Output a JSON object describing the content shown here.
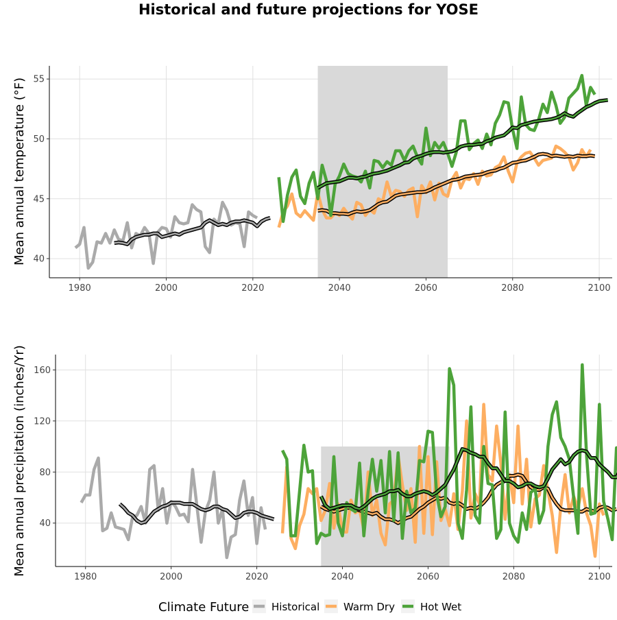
{
  "title": "Historical and future projections for YOSE",
  "legend": {
    "title": "Climate Future",
    "items": [
      {
        "label": "Historical",
        "color": "#AAAAAA"
      },
      {
        "label": "Warm Dry",
        "color": "#FDAE61"
      },
      {
        "label": "Hot Wet",
        "color": "#4DA33A"
      }
    ]
  },
  "colors": {
    "shade": "#D9D9D9",
    "grid": "#E0E0E0",
    "smooth": "#000000"
  },
  "chart_data": [
    {
      "type": "line",
      "ylabel": "Mean annual temperature (°F)",
      "xlabel": "",
      "xlim": [
        1973,
        2103
      ],
      "ylim": [
        38.4,
        56.1
      ],
      "xticks": [
        1980,
        2000,
        2020,
        2040,
        2060,
        2080,
        2100
      ],
      "yticks": [
        40,
        45,
        50,
        55
      ],
      "grid": true,
      "shaded_range": [
        2035,
        2065
      ],
      "series": [
        {
          "name": "Historical",
          "x_start": 1979,
          "values": [
            40.9,
            41.2,
            42.6,
            39.2,
            39.7,
            41.4,
            41.3,
            42.1,
            41.3,
            42.4,
            41.6,
            41.5,
            43.0,
            40.9,
            42.1,
            41.9,
            42.6,
            42.1,
            39.6,
            42.2,
            42.6,
            42.5,
            41.8,
            43.5,
            43.0,
            42.9,
            43.0,
            44.5,
            44.1,
            43.9,
            41.0,
            40.5,
            43.3,
            42.9,
            44.7,
            44.0,
            42.8,
            43.0,
            42.9,
            41.0,
            43.9,
            43.6,
            43.4
          ]
        },
        {
          "name": "Historical smoothed",
          "smooth": true,
          "x_start": 1988,
          "values": [
            41.3,
            41.35,
            41.3,
            41.2,
            41.6,
            41.8,
            41.9,
            42.0,
            42.0,
            42.1,
            42.1,
            41.8,
            41.9,
            42.0,
            42.1,
            42.0,
            42.2,
            42.3,
            42.4,
            42.5,
            42.6,
            43.0,
            43.2,
            43.0,
            42.8,
            42.9,
            42.8,
            43.0,
            43.1,
            43.1,
            43.2,
            43.1,
            43.0,
            42.7,
            43.1,
            43.3,
            43.4
          ]
        },
        {
          "name": "Warm Dry",
          "x_start": 2026,
          "values": [
            42.6,
            43.9,
            44.4,
            45.4,
            43.8,
            43.5,
            44.0,
            43.6,
            43.2,
            45.5,
            44.1,
            43.4,
            43.4,
            43.8,
            43.6,
            44.2,
            43.7,
            43.3,
            44.7,
            44.5,
            43.6,
            44.1,
            43.8,
            45.0,
            44.8,
            46.4,
            45.2,
            45.7,
            45.6,
            45.2,
            45.7,
            45.9,
            43.5,
            46.1,
            45.5,
            46.4,
            44.9,
            46.3,
            45.4,
            45.2,
            46.6,
            47.2,
            45.9,
            46.7,
            46.6,
            47.1,
            46.2,
            47.3,
            46.9,
            47.0,
            47.6,
            47.8,
            48.5,
            47.3,
            46.4,
            48.0,
            48.5,
            48.8,
            48.9,
            48.4,
            47.8,
            48.2,
            48.3,
            48.4,
            49.4,
            49.2,
            48.9,
            48.5,
            47.4,
            48.0,
            49.1,
            48.5,
            49.1
          ]
        },
        {
          "name": "Warm Dry smoothed",
          "smooth": true,
          "x_start": 2035,
          "values": [
            44.0,
            44.05,
            44.0,
            43.8,
            43.8,
            43.75,
            43.75,
            43.7,
            43.85,
            43.95,
            43.9,
            43.95,
            44.05,
            44.3,
            44.55,
            44.7,
            44.75,
            45.0,
            45.25,
            45.35,
            45.4,
            45.45,
            45.5,
            45.55,
            45.55,
            45.6,
            45.75,
            45.95,
            46.1,
            46.25,
            46.4,
            46.55,
            46.6,
            46.7,
            46.85,
            46.9,
            46.95,
            47.0,
            47.05,
            47.2,
            47.3,
            47.35,
            47.5,
            47.6,
            47.8,
            48.0,
            48.05,
            48.15,
            48.2,
            48.35,
            48.5,
            48.7,
            48.75,
            48.7,
            48.55,
            48.6,
            48.55,
            48.5,
            48.55,
            48.5,
            48.6,
            48.55,
            48.55,
            48.6,
            48.55
          ]
        },
        {
          "name": "Hot Wet",
          "x_start": 2026,
          "values": [
            46.8,
            43.1,
            45.3,
            46.8,
            47.4,
            45.2,
            44.6,
            46.3,
            47.2,
            45.0,
            47.8,
            46.5,
            43.6,
            46.2,
            46.9,
            47.9,
            47.1,
            46.9,
            46.8,
            46.4,
            47.3,
            45.9,
            48.2,
            48.1,
            47.6,
            48.1,
            47.8,
            49.0,
            49.0,
            48.2,
            49.0,
            49.4,
            48.5,
            47.9,
            50.9,
            48.6,
            49.7,
            49.2,
            49.7,
            48.8,
            47.7,
            48.9,
            51.5,
            51.5,
            49.1,
            49.6,
            49.9,
            49.2,
            50.4,
            49.5,
            51.3,
            52.0,
            53.1,
            53.0,
            50.8,
            49.2,
            53.5,
            51.2,
            50.8,
            50.7,
            51.6,
            52.9,
            52.2,
            53.9,
            52.8,
            51.3,
            51.8,
            53.4,
            53.8,
            54.2,
            55.3,
            52.8,
            54.3,
            53.7
          ]
        },
        {
          "name": "Hot Wet smoothed",
          "smooth": true,
          "x_start": 2035,
          "values": [
            45.9,
            46.1,
            46.3,
            46.35,
            46.4,
            46.45,
            46.6,
            46.75,
            46.75,
            46.7,
            46.8,
            46.85,
            47.0,
            47.1,
            47.15,
            47.25,
            47.35,
            47.5,
            47.65,
            47.8,
            48.0,
            48.05,
            48.35,
            48.5,
            48.6,
            48.75,
            48.85,
            48.9,
            48.9,
            48.85,
            48.9,
            48.95,
            49.1,
            49.35,
            49.45,
            49.5,
            49.5,
            49.55,
            49.6,
            49.8,
            49.9,
            50.1,
            50.2,
            50.3,
            50.6,
            50.95,
            50.9,
            51.15,
            51.25,
            51.35,
            51.45,
            51.5,
            51.55,
            51.6,
            51.65,
            51.75,
            51.9,
            52.15,
            51.95,
            51.85,
            52.15,
            52.4,
            52.65,
            52.8,
            53.0,
            53.15,
            53.2,
            53.25
          ]
        }
      ]
    },
    {
      "type": "line",
      "ylabel": "Mean annual precipitation (inches/Yr)",
      "xlabel": "",
      "xlim": [
        1973,
        2103
      ],
      "ylim": [
        6,
        172
      ],
      "xticks": [
        1980,
        2000,
        2020,
        2040,
        2060,
        2080,
        2100
      ],
      "yticks": [
        40,
        80,
        120,
        160
      ],
      "grid": true,
      "shaded_range": [
        2035,
        2065
      ],
      "shaded_ylim": [
        6,
        100
      ],
      "series": [
        {
          "name": "Historical",
          "x_start": 1979,
          "values": [
            56,
            62,
            62,
            82,
            91,
            34,
            36,
            48,
            37,
            36,
            35,
            27,
            45,
            46,
            53,
            40,
            82,
            85,
            50,
            67,
            40,
            57,
            53,
            46,
            47,
            41,
            82,
            54,
            25,
            49,
            58,
            80,
            40,
            51,
            13,
            29,
            31,
            58,
            73,
            46,
            60,
            24,
            52,
            35
          ]
        },
        {
          "name": "Historical smoothed",
          "smooth": true,
          "x_start": 1988,
          "values": [
            55,
            52,
            48,
            46,
            42,
            40,
            41,
            45,
            49,
            51,
            53,
            54,
            56,
            56,
            56,
            55,
            55,
            55,
            53,
            51,
            50,
            51,
            53,
            53,
            51,
            50,
            47,
            44,
            45,
            48,
            49,
            49,
            48,
            46,
            45,
            44,
            43
          ]
        },
        {
          "name": "Warm Dry",
          "x_start": 2026,
          "values": [
            32,
            84,
            28,
            20,
            38,
            47,
            67,
            63,
            67,
            42,
            50,
            71,
            36,
            55,
            33,
            33,
            58,
            48,
            50,
            35,
            80,
            46,
            58,
            32,
            23,
            55,
            58,
            93,
            70,
            50,
            67,
            25,
            100,
            32,
            92,
            31,
            88,
            42,
            51,
            38,
            63,
            35,
            65,
            120,
            44,
            63,
            55,
            133,
            78,
            73,
            116,
            87,
            43,
            78,
            56,
            116,
            55,
            90,
            37,
            59,
            62,
            85,
            65,
            46,
            17,
            53,
            78,
            48,
            61,
            52,
            67,
            48,
            38,
            14,
            55,
            46
          ]
        },
        {
          "name": "Warm Dry smoothed",
          "smooth": true,
          "x_start": 2035,
          "values": [
            53,
            51,
            50,
            49,
            50,
            51,
            52,
            52,
            51,
            50,
            49,
            48,
            47,
            48,
            45,
            43,
            43,
            42,
            40,
            42,
            44,
            45,
            48,
            51,
            53,
            56,
            58,
            60,
            59,
            60,
            56,
            55,
            56,
            54,
            51,
            52,
            51,
            53,
            56,
            60,
            66,
            70,
            72,
            73,
            77,
            77,
            78,
            77,
            72,
            68,
            66,
            66,
            68,
            67,
            60,
            55,
            51,
            50,
            50,
            50,
            49,
            49,
            51,
            50,
            49,
            52,
            53,
            52,
            50,
            51
          ]
        },
        {
          "name": "Hot Wet",
          "x_start": 2026,
          "values": [
            97,
            90,
            30,
            30,
            65,
            101,
            80,
            81,
            24,
            32,
            30,
            31,
            92,
            40,
            30,
            56,
            51,
            49,
            87,
            30,
            65,
            90,
            65,
            89,
            48,
            96,
            42,
            95,
            28,
            65,
            48,
            52,
            89,
            88,
            112,
            111,
            63,
            45,
            53,
            161,
            148,
            40,
            28,
            66,
            131,
            46,
            40,
            100,
            71,
            70,
            28,
            35,
            127,
            40,
            30,
            25,
            48,
            35,
            64,
            67,
            40,
            50,
            100,
            125,
            135,
            107,
            100,
            90,
            60,
            32,
            164,
            94,
            47,
            48,
            133,
            57,
            43,
            27,
            99,
            93
          ]
        },
        {
          "name": "Hot Wet smoothed",
          "smooth": true,
          "x_start": 2035,
          "values": [
            61,
            54,
            51,
            52,
            53,
            54,
            54,
            54,
            52,
            51,
            53,
            56,
            59,
            61,
            62,
            63,
            65,
            65,
            66,
            63,
            61,
            61,
            63,
            64,
            65,
            64,
            62,
            64,
            67,
            70,
            76,
            82,
            90,
            98,
            97,
            95,
            94,
            92,
            92,
            87,
            83,
            83,
            78,
            73,
            73,
            71,
            68,
            69,
            71,
            71,
            69,
            68,
            69,
            75,
            82,
            86,
            90,
            86,
            88,
            93,
            96,
            97,
            96,
            91,
            91,
            86,
            83,
            80,
            76,
            76,
            82,
            77
          ]
        }
      ]
    }
  ]
}
